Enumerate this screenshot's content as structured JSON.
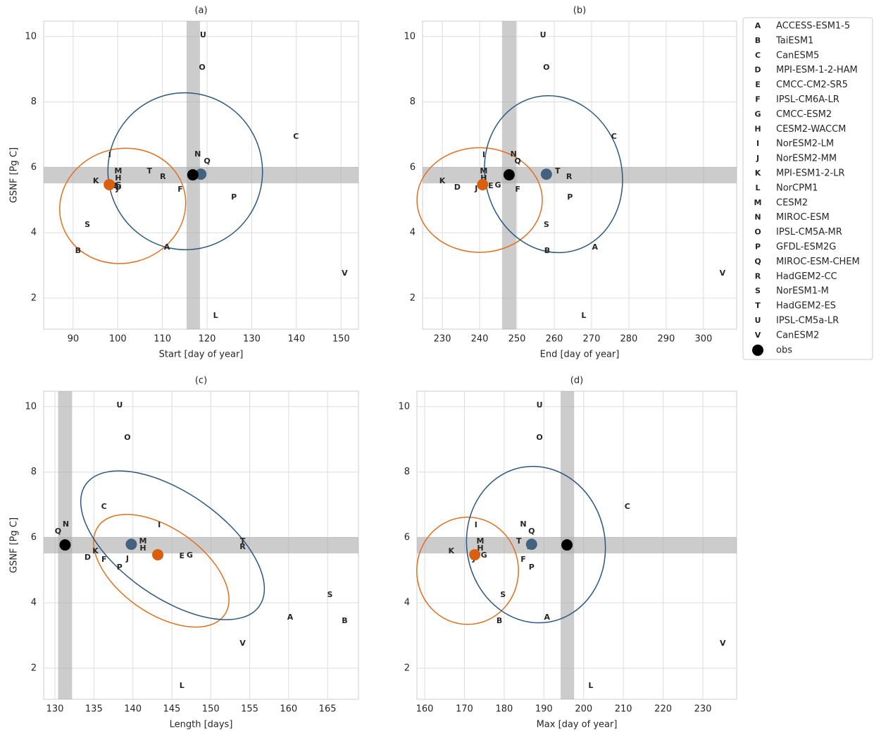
{
  "models": [
    {
      "marker": "A",
      "name": "ACCESS-ESM1-5",
      "color": "#e8a317"
    },
    {
      "marker": "B",
      "name": "TaiESM1",
      "color": "#e8a317"
    },
    {
      "marker": "C",
      "name": "CanESM5",
      "color": "#e8a317"
    },
    {
      "marker": "D",
      "name": "MPI-ESM-1-2-HAM",
      "color": "#e8a317"
    },
    {
      "marker": "E",
      "name": "CMCC-CM2-SR5",
      "color": "#e8a317"
    },
    {
      "marker": "F",
      "name": "IPSL-CM6A-LR",
      "color": "#e8a317"
    },
    {
      "marker": "G",
      "name": "CMCC-ESM2",
      "color": "#e8a317"
    },
    {
      "marker": "H",
      "name": "CESM2-WACCM",
      "color": "#e8a317"
    },
    {
      "marker": "I",
      "name": "NorESM2-LM",
      "color": "#e8a317"
    },
    {
      "marker": "J",
      "name": "NorESM2-MM",
      "color": "#e8a317"
    },
    {
      "marker": "K",
      "name": "MPI-ESM1-2-LR",
      "color": "#e8a317"
    },
    {
      "marker": "L",
      "name": "NorCPM1",
      "color": "#e8a317"
    },
    {
      "marker": "M",
      "name": "CESM2",
      "color": "#e8a317"
    },
    {
      "marker": "N",
      "name": "MIROC-ESM",
      "color": "#5a8ee0"
    },
    {
      "marker": "O",
      "name": "IPSL-CM5A-MR",
      "color": "#5a8ee0"
    },
    {
      "marker": "P",
      "name": "GFDL-ESM2G",
      "color": "#5a8ee0"
    },
    {
      "marker": "Q",
      "name": "MIROC-ESM-CHEM",
      "color": "#5a8ee0"
    },
    {
      "marker": "R",
      "name": "HadGEM2-CC",
      "color": "#5a8ee0"
    },
    {
      "marker": "S",
      "name": "NorESM1-M",
      "color": "#5a8ee0"
    },
    {
      "marker": "T",
      "name": "HadGEM2-ES",
      "color": "#5a8ee0"
    },
    {
      "marker": "U",
      "name": "IPSL-CM5a-LR",
      "color": "#5a8ee0"
    },
    {
      "marker": "V",
      "name": "CanESM2",
      "color": "#5a8ee0"
    }
  ],
  "obs_legend": {
    "name": "obs",
    "color": "#000000"
  },
  "chart_data": [
    {
      "type": "scatter",
      "title": "(a)",
      "x_label": "Start [day of year]",
      "y_label": "GSNF [Pg C]",
      "grid": true,
      "xlim": [
        83.4,
        153.9
      ],
      "ylim": [
        1.05,
        10.47
      ],
      "xticks": [
        90,
        100,
        110,
        120,
        130,
        140,
        150
      ],
      "yticks": [
        2,
        4,
        6,
        8,
        10
      ],
      "x": [
        111.0,
        91.1,
        139.9,
        100.1,
        99.6,
        114.0,
        100.1,
        100.1,
        98.2,
        99.9,
        95.1,
        121.9,
        100.1,
        117.9,
        118.9,
        126.0,
        120.0,
        110.1,
        93.2,
        107.1,
        119.1,
        150.8
      ],
      "y": [
        3.55,
        3.44,
        6.94,
        5.38,
        5.43,
        5.32,
        5.45,
        5.66,
        6.37,
        5.34,
        5.58,
        1.46,
        5.88,
        6.4,
        9.05,
        5.08,
        6.18,
        5.71,
        4.24,
        5.88,
        10.04,
        2.75
      ],
      "obs": {
        "x": 116.8,
        "y": 5.77
      },
      "obs_band": {
        "x": [
          115.4,
          118.4
        ],
        "y": [
          5.51,
          6.01
        ]
      },
      "means": [
        {
          "color": "#d95f0e",
          "x": 98.1,
          "y": 5.47
        },
        {
          "color": "#44627f",
          "x": 118.6,
          "y": 5.79
        }
      ],
      "ellipses": [
        {
          "color": "#e0701f",
          "cx": 101.1,
          "cy": 4.82,
          "rx": 14.2,
          "ry": 1.75,
          "angle": -15
        },
        {
          "color": "#2c5780",
          "cx": 115.1,
          "cy": 5.88,
          "rx": 17.3,
          "ry": 2.4,
          "angle": -10
        }
      ]
    },
    {
      "type": "scatter",
      "title": "(b)",
      "x_label": "End [day of year]",
      "grid": true,
      "xlim": [
        224.7,
        308.9
      ],
      "ylim": [
        1.05,
        10.47
      ],
      "xticks": [
        230,
        240,
        250,
        260,
        270,
        280,
        290,
        300
      ],
      "yticks": [
        2,
        4,
        6,
        8,
        10
      ],
      "x": [
        270.9,
        258.1,
        276.0,
        234.0,
        243.0,
        250.2,
        244.9,
        241.1,
        241.1,
        239.1,
        230.0,
        267.9,
        241.1,
        249.1,
        257.9,
        264.2,
        250.2,
        264.0,
        257.9,
        260.9,
        257.0,
        305.1
      ],
      "y": [
        3.55,
        3.44,
        6.94,
        5.38,
        5.43,
        5.32,
        5.45,
        5.66,
        6.37,
        5.34,
        5.58,
        1.46,
        5.88,
        6.4,
        9.05,
        5.08,
        6.18,
        5.71,
        4.24,
        5.88,
        10.04,
        2.75
      ],
      "obs": {
        "x": 247.9,
        "y": 5.77
      },
      "obs_band": {
        "x": [
          246.0,
          249.8
        ],
        "y": [
          5.51,
          6.01
        ]
      },
      "means": [
        {
          "color": "#d95f0e",
          "x": 240.8,
          "y": 5.47
        },
        {
          "color": "#44627f",
          "x": 257.9,
          "y": 5.79
        }
      ],
      "ellipses": [
        {
          "color": "#e0701f",
          "cx": 240.0,
          "cy": 5.0,
          "rx": 16.8,
          "ry": 1.6,
          "angle": 0
        },
        {
          "color": "#2c5780",
          "cx": 259.8,
          "cy": 5.79,
          "rx": 18.3,
          "ry": 2.42,
          "angle": -15
        }
      ]
    },
    {
      "type": "scatter",
      "title": "(c)",
      "x_label": "Length [days]",
      "y_label": "GSNF [Pg C]",
      "grid": true,
      "xlim": [
        128.55,
        168.97
      ],
      "ylim": [
        1.05,
        10.47
      ],
      "xticks": [
        130,
        135,
        140,
        145,
        150,
        155,
        160,
        165
      ],
      "yticks": [
        2,
        4,
        6,
        8,
        10
      ],
      "x": [
        160.2,
        167.2,
        136.3,
        134.2,
        146.3,
        136.3,
        147.3,
        141.3,
        143.4,
        139.3,
        135.2,
        146.3,
        141.3,
        131.4,
        139.3,
        138.3,
        130.4,
        154.1,
        165.3,
        154.1,
        138.3,
        154.1
      ],
      "y": [
        3.55,
        3.44,
        6.94,
        5.38,
        5.43,
        5.32,
        5.45,
        5.66,
        6.37,
        5.34,
        5.58,
        1.46,
        5.88,
        6.4,
        9.05,
        5.08,
        6.18,
        5.71,
        4.24,
        5.88,
        10.04,
        2.75
      ],
      "obs": {
        "x": 131.3,
        "y": 5.77
      },
      "obs_band": {
        "x": [
          130.4,
          132.2
        ],
        "y": [
          5.51,
          6.01
        ]
      },
      "means": [
        {
          "color": "#d95f0e",
          "x": 143.2,
          "y": 5.47
        },
        {
          "color": "#44627f",
          "x": 139.8,
          "y": 5.79
        }
      ],
      "ellipses": [
        {
          "color": "#e0701f",
          "cx": 143.65,
          "cy": 4.98,
          "rx": 9.9,
          "ry": 1.3,
          "angle": 35
        },
        {
          "color": "#2c5780",
          "cx": 145.1,
          "cy": 5.76,
          "rx": 13.6,
          "ry": 1.6,
          "angle": 35
        }
      ]
    },
    {
      "type": "scatter",
      "title": "(d)",
      "x_label": "Max [day of year]",
      "grid": true,
      "xlim": [
        158.05,
        238.5
      ],
      "ylim": [
        1.05,
        10.47
      ],
      "xticks": [
        160,
        170,
        180,
        190,
        200,
        210,
        220,
        230
      ],
      "yticks": [
        2,
        4,
        6,
        8,
        10
      ],
      "x": [
        190.8,
        178.8,
        211.0,
        172.4,
        172.9,
        184.8,
        174.9,
        174.0,
        172.9,
        172.4,
        166.7,
        201.8,
        174.0,
        184.8,
        188.9,
        186.9,
        186.9,
        186.4,
        179.7,
        183.7,
        188.9,
        235.0
      ],
      "y": [
        3.55,
        3.44,
        6.94,
        5.38,
        5.43,
        5.32,
        5.45,
        5.66,
        6.37,
        5.34,
        5.58,
        1.46,
        5.88,
        6.4,
        9.05,
        5.08,
        6.18,
        5.71,
        4.24,
        5.88,
        10.04,
        2.75
      ],
      "obs": {
        "x": 195.8,
        "y": 5.77
      },
      "obs_band": {
        "x": [
          194.2,
          197.6
        ],
        "y": [
          5.51,
          6.01
        ]
      },
      "means": [
        {
          "color": "#d95f0e",
          "x": 172.6,
          "y": 5.47
        },
        {
          "color": "#44627f",
          "x": 186.9,
          "y": 5.79
        }
      ],
      "ellipses": [
        {
          "color": "#e0701f",
          "cx": 170.8,
          "cy": 4.98,
          "rx": 12.8,
          "ry": 1.64,
          "angle": 0
        },
        {
          "color": "#2c5780",
          "cx": 188.0,
          "cy": 5.78,
          "rx": 17.4,
          "ry": 2.4,
          "angle": -10
        }
      ]
    }
  ]
}
